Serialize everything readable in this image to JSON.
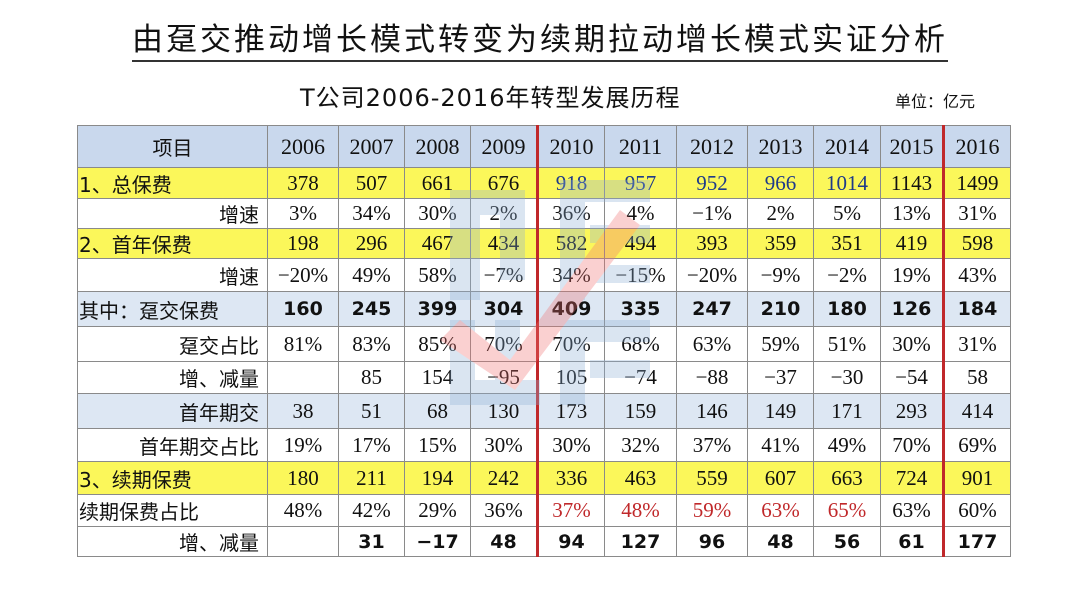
{
  "title": "由趸交推动增长模式转变为续期拉动增长模式实证分析",
  "subtitle": "T公司2006-2016年转型发展历程",
  "unit": "单位：亿元",
  "table": {
    "header_label": "项目",
    "years": [
      "2006",
      "2007",
      "2008",
      "2009",
      "2010",
      "2011",
      "2012",
      "2013",
      "2014",
      "2015",
      "2016"
    ],
    "rows": [
      {
        "label": "1、总保费",
        "values": [
          "378",
          "507",
          "661",
          "676",
          "918",
          "957",
          "952",
          "966",
          "1014",
          "1143",
          "1499"
        ]
      },
      {
        "label": "增速",
        "values": [
          "3%",
          "34%",
          "30%",
          "2%",
          "36%",
          "4%",
          "−1%",
          "2%",
          "5%",
          "13%",
          "31%"
        ]
      },
      {
        "label": "2、首年保费",
        "values": [
          "198",
          "296",
          "467",
          "434",
          "582",
          "494",
          "393",
          "359",
          "351",
          "419",
          "598"
        ]
      },
      {
        "label": "增速",
        "values": [
          "−20%",
          "49%",
          "58%",
          "−7%",
          "34%",
          "−15%",
          "−20%",
          "−9%",
          "−2%",
          "19%",
          "43%"
        ]
      },
      {
        "label": "其中：趸交保费",
        "values": [
          "160",
          "245",
          "399",
          "304",
          "409",
          "335",
          "247",
          "210",
          "180",
          "126",
          "184"
        ]
      },
      {
        "label": "趸交占比",
        "values": [
          "81%",
          "83%",
          "85%",
          "70%",
          "70%",
          "68%",
          "63%",
          "59%",
          "51%",
          "30%",
          "31%"
        ]
      },
      {
        "label": "增、减量",
        "values": [
          "",
          "85",
          "154",
          "−95",
          "105",
          "−74",
          "−88",
          "−37",
          "−30",
          "−54",
          "58"
        ]
      },
      {
        "label": "首年期交",
        "values": [
          "38",
          "51",
          "68",
          "130",
          "173",
          "159",
          "146",
          "149",
          "171",
          "293",
          "414"
        ]
      },
      {
        "label": "首年期交占比",
        "values": [
          "19%",
          "17%",
          "15%",
          "30%",
          "30%",
          "32%",
          "37%",
          "41%",
          "49%",
          "70%",
          "69%"
        ]
      },
      {
        "label": "3、续期保费",
        "values": [
          "180",
          "211",
          "194",
          "242",
          "336",
          "463",
          "559",
          "607",
          "663",
          "724",
          "901"
        ]
      },
      {
        "label": "续期保费占比",
        "values": [
          "48%",
          "42%",
          "29%",
          "36%",
          "37%",
          "48%",
          "59%",
          "63%",
          "65%",
          "63%",
          "60%"
        ]
      },
      {
        "label": "增、减量",
        "values": [
          "",
          "31",
          "−17",
          "48",
          "94",
          "127",
          "96",
          "48",
          "56",
          "61",
          "177"
        ]
      }
    ]
  },
  "colors": {
    "header_bg": "#c9d8ed",
    "highlight_yellow": "#fbf75a",
    "light_blue_row": "#dde7f3",
    "divider_red": "#c0282a",
    "blue_text": "#1e3a8a"
  }
}
